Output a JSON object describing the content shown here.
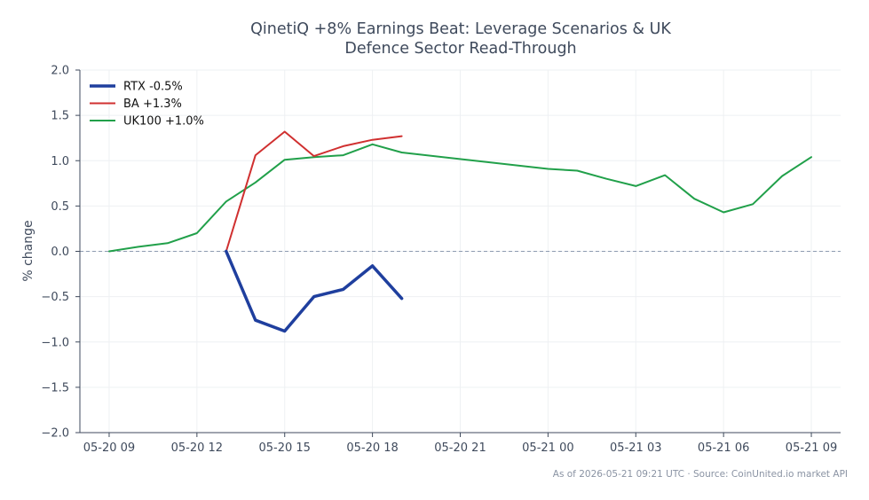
{
  "chart_data": {
    "type": "line",
    "title_lines": [
      "QinetiQ +8% Earnings Beat: Leverage Scenarios & UK",
      "Defence Sector Read-Through"
    ],
    "xlabel": "",
    "ylabel": "% change",
    "ylim": [
      -2.0,
      2.0
    ],
    "yticks": [
      -2.0,
      -1.5,
      -1.0,
      -0.5,
      0.0,
      0.5,
      1.0,
      1.5,
      2.0
    ],
    "ytick_labels": [
      "−2.0",
      "−1.5",
      "−1.0",
      "−0.5",
      "0.0",
      "0.5",
      "1.0",
      "1.5",
      "2.0"
    ],
    "x_unit": "hour",
    "x_range": [
      "05-20 08",
      "05-21 10"
    ],
    "xticks": [
      "05-20 09",
      "05-20 12",
      "05-20 15",
      "05-20 18",
      "05-20 21",
      "05-21 00",
      "05-21 03",
      "05-21 06",
      "05-21 09"
    ],
    "grid": true,
    "zero_line": true,
    "legend": "top-left",
    "series": [
      {
        "name": "RTX -0.5%",
        "color": "#1f3f9e",
        "width": 3.5,
        "points": [
          [
            "05-20 13",
            0.0
          ],
          [
            "05-20 14",
            -0.76
          ],
          [
            "05-20 15",
            -0.88
          ],
          [
            "05-20 16",
            -0.5
          ],
          [
            "05-20 17",
            -0.42
          ],
          [
            "05-20 18",
            -0.16
          ],
          [
            "05-20 19",
            -0.52
          ]
        ]
      },
      {
        "name": "BA +1.3%",
        "color": "#d03030",
        "width": 2,
        "points": [
          [
            "05-20 13",
            0.0
          ],
          [
            "05-20 14",
            1.06
          ],
          [
            "05-20 15",
            1.32
          ],
          [
            "05-20 16",
            1.05
          ],
          [
            "05-20 17",
            1.16
          ],
          [
            "05-20 18",
            1.23
          ],
          [
            "05-20 19",
            1.27
          ]
        ]
      },
      {
        "name": "UK100 +1.0%",
        "color": "#21a04a",
        "width": 2,
        "points": [
          [
            "05-20 09",
            0.0
          ],
          [
            "05-20 10",
            0.05
          ],
          [
            "05-20 11",
            0.09
          ],
          [
            "05-20 12",
            0.2
          ],
          [
            "05-20 13",
            0.55
          ],
          [
            "05-20 14",
            0.76
          ],
          [
            "05-20 15",
            1.01
          ],
          [
            "05-20 16",
            1.04
          ],
          [
            "05-20 17",
            1.06
          ],
          [
            "05-20 18",
            1.18
          ],
          [
            "05-20 19",
            1.09
          ],
          [
            "05-21 00",
            0.91
          ],
          [
            "05-21 01",
            0.89
          ],
          [
            "05-21 02",
            0.8
          ],
          [
            "05-21 03",
            0.72
          ],
          [
            "05-21 04",
            0.84
          ],
          [
            "05-21 05",
            0.58
          ],
          [
            "05-21 06",
            0.43
          ],
          [
            "05-21 07",
            0.52
          ],
          [
            "05-21 08",
            0.83
          ],
          [
            "05-21 09",
            1.04
          ]
        ]
      }
    ]
  },
  "footer": "As of 2026-05-21 09:21 UTC · Source: CoinUnited.io market API"
}
